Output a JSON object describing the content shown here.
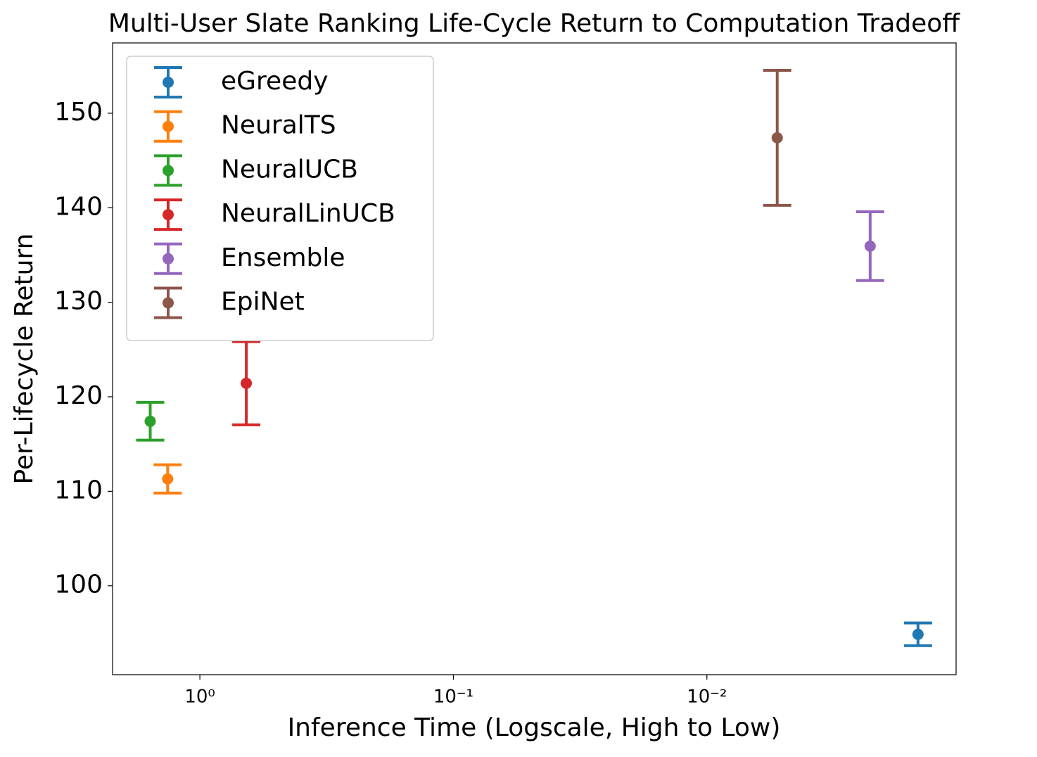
{
  "chart_data": {
    "type": "errorbar",
    "title": "Multi-User Slate Ranking Life-Cycle Return to Computation Tradeoff",
    "xlabel": "Inference Time (Logscale, High to Low)",
    "ylabel": "Per-Lifecycle Return",
    "xscale": "log",
    "xlim": [
      2.21,
      0.00104
    ],
    "xticks": [
      {
        "value": 1,
        "label": "10⁰"
      },
      {
        "value": 0.1,
        "label": "10⁻¹"
      },
      {
        "value": 0.01,
        "label": "10⁻²"
      }
    ],
    "ylim": [
      90.6,
      157.44
    ],
    "yticks": [
      100,
      110,
      120,
      130,
      140,
      150
    ],
    "legend": "upper left",
    "series": [
      {
        "name": "eGreedy",
        "color": "#1f77b4",
        "x": [
          0.00147
        ],
        "values": [
          94.87
        ],
        "errors": [
          1.2
        ]
      },
      {
        "name": "NeuralTS",
        "color": "#ff7f0e",
        "x": [
          1.34
        ],
        "values": [
          111.31
        ],
        "errors": [
          1.5
        ]
      },
      {
        "name": "NeuralUCB",
        "color": "#2ca02c",
        "x": [
          1.57
        ],
        "values": [
          117.41
        ],
        "errors": [
          2.0
        ]
      },
      {
        "name": "NeuralLinUCB",
        "color": "#d62728",
        "x": [
          0.656
        ],
        "values": [
          121.43
        ],
        "errors": [
          4.4
        ]
      },
      {
        "name": "Ensemble",
        "color": "#9467bd",
        "x": [
          0.00227
        ],
        "values": [
          135.94
        ],
        "errors": [
          3.64
        ]
      },
      {
        "name": "EpiNet",
        "color": "#8c564b",
        "x": [
          0.00528
        ],
        "values": [
          147.4
        ],
        "errors": [
          7.14
        ]
      }
    ]
  }
}
